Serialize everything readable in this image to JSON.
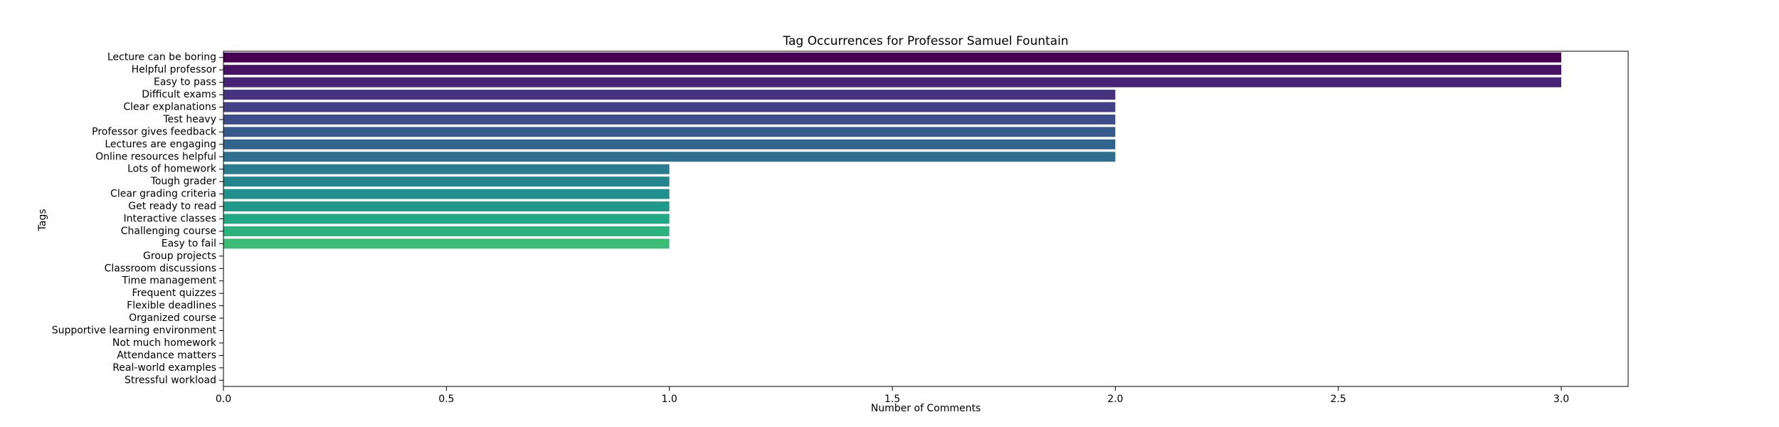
{
  "chart_data": {
    "type": "bar",
    "orientation": "horizontal",
    "title": "Tag Occurrences for Professor Samuel Fountain",
    "xlabel": "Number of Comments",
    "ylabel": "Tags",
    "xlim": [
      0,
      3.15
    ],
    "xticks": [
      0.0,
      0.5,
      1.0,
      1.5,
      2.0,
      2.5,
      3.0
    ],
    "xtick_labels": [
      "0.0",
      "0.5",
      "1.0",
      "1.5",
      "2.0",
      "2.5",
      "3.0"
    ],
    "grid": false,
    "legend": "none",
    "colormap": "viridis",
    "categories": [
      "Lecture can be boring",
      "Helpful professor",
      "Easy to pass",
      "Difficult exams",
      "Clear explanations",
      "Test heavy",
      "Professor gives feedback",
      "Lectures are engaging",
      "Online resources helpful",
      "Lots of homework",
      "Tough grader",
      "Clear grading criteria",
      "Get ready to read",
      "Interactive classes",
      "Challenging course",
      "Easy to fail",
      "Group projects",
      "Classroom discussions",
      "Time management",
      "Frequent quizzes",
      "Flexible deadlines",
      "Organized course",
      "Supportive learning environment",
      "Not much homework",
      "Attendance matters",
      "Real-world examples",
      "Stressful workload"
    ],
    "values": [
      3,
      3,
      3,
      2,
      2,
      2,
      2,
      2,
      2,
      1,
      1,
      1,
      1,
      1,
      1,
      1,
      0,
      0,
      0,
      0,
      0,
      0,
      0,
      0,
      0,
      0,
      0
    ],
    "bar_colors": [
      "#440154",
      "#471365",
      "#482374",
      "#46327e",
      "#424086",
      "#3d4d8a",
      "#375a8c",
      "#32658e",
      "#2d708e",
      "#297b8e",
      "#25858e",
      "#218f8d",
      "#1f9a8a",
      "#22a884",
      "#2cb17e",
      "#3bbb75",
      "#4ec36b",
      "#65cb5e",
      "#7ad151",
      "#95d840",
      "#a8db34",
      "#c2df23",
      "#d0e11c",
      "#e5e419",
      "#f1e51d",
      "#f6e620",
      "#fde725"
    ]
  }
}
